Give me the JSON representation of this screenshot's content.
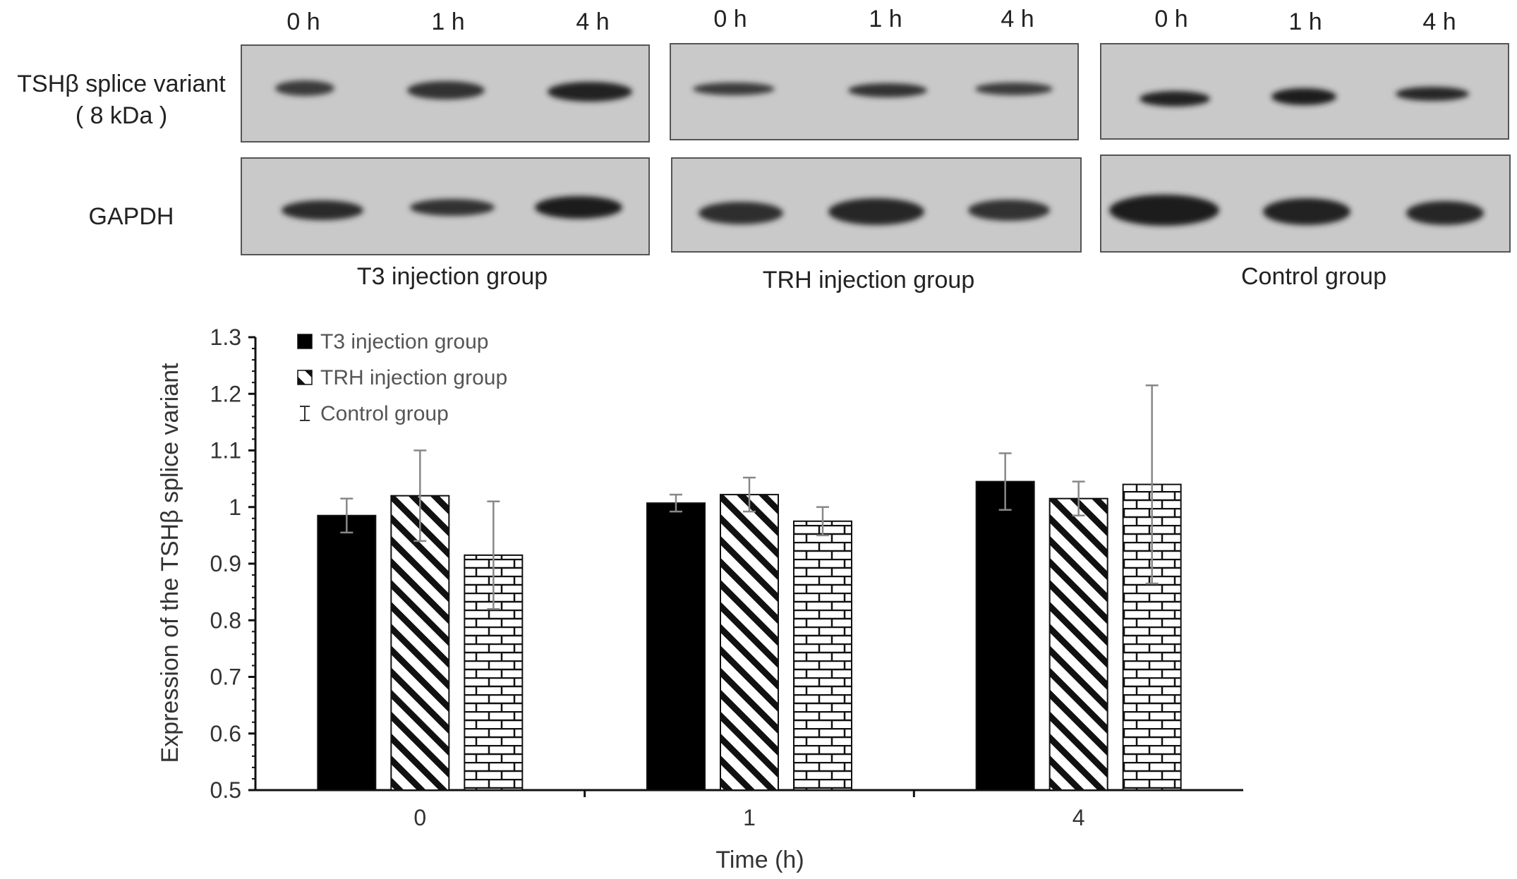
{
  "blots": {
    "row_labels": {
      "tsh_line1": "TSHβ splice variant",
      "tsh_line2": "( 8 kDa )",
      "gapdh": "GAPDH"
    },
    "groups": [
      {
        "name": "T3 injection group",
        "lanes": [
          "0 h",
          "1 h",
          "4 h"
        ]
      },
      {
        "name": "TRH injection group",
        "lanes": [
          "0 h",
          "1 h",
          "4 h"
        ]
      },
      {
        "name": "Control group",
        "lanes": [
          "0 h",
          "1 h",
          "4 h"
        ]
      }
    ]
  },
  "chart_data": {
    "type": "bar",
    "categories": [
      "0",
      "1",
      "4"
    ],
    "xlabel": "Time (h)",
    "ylabel": "Expression of the TSHβ splice variant",
    "ylim": [
      0.5,
      1.3
    ],
    "yticks": [
      "0.5",
      "0.6",
      "0.7",
      "0.8",
      "0.9",
      "1",
      "1.1",
      "1.2",
      "1.3"
    ],
    "legend_position": "top-left",
    "series": [
      {
        "name": "T3 injection group",
        "pattern": "solid-black",
        "values": [
          0.985,
          1.007,
          1.045
        ],
        "errors": [
          0.03,
          0.015,
          0.05
        ]
      },
      {
        "name": "TRH injection group",
        "pattern": "diagonal-hatch",
        "values": [
          1.02,
          1.022,
          1.015
        ],
        "errors": [
          0.08,
          0.03,
          0.03
        ]
      },
      {
        "name": "Control group",
        "pattern": "brick",
        "values": [
          0.915,
          0.975,
          1.04
        ],
        "errors": [
          0.095,
          0.025,
          0.175
        ]
      }
    ]
  }
}
